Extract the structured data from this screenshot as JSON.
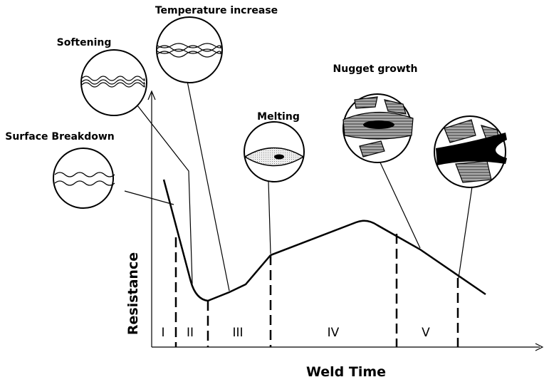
{
  "axes": {
    "x_label": "Weld Time",
    "y_label": "Resistance"
  },
  "stages": [
    "I",
    "II",
    "III",
    "IV",
    "V"
  ],
  "callouts": [
    "Surface Breakdown",
    "Softening",
    "Temperature increase",
    "Melting",
    "Nugget growth"
  ]
}
